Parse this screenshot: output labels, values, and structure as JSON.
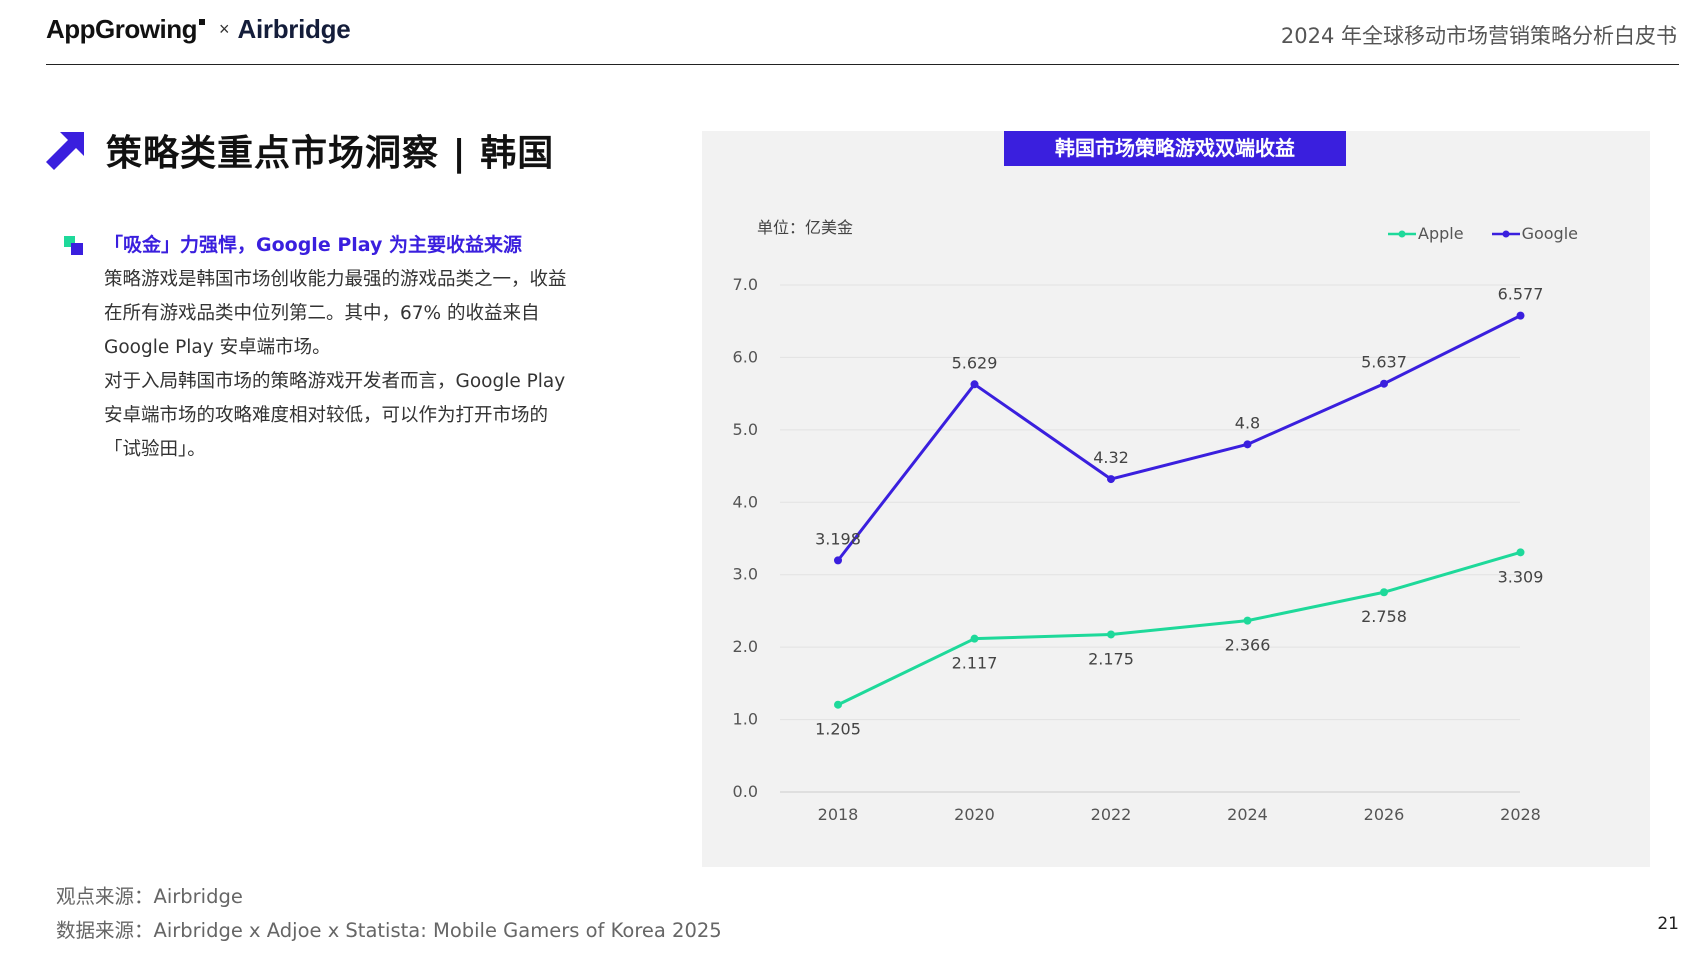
{
  "header": {
    "logo_left": "AppGrowing",
    "logo_sep": "×",
    "logo_right": "Airbridge",
    "report_title": "2024 年全球移动市场营销策略分析白皮书"
  },
  "section": {
    "title": "策略类重点市场洞察 | 韩国",
    "arrow_color": "#3a1fde"
  },
  "insight": {
    "headline": "「吸金」力强悍，Google Play 为主要收益来源",
    "lines": [
      "策略游戏是韩国市场创收能力最强的游戏品类之一，收益",
      "在所有游戏品类中位列第二。其中，67% 的收益来自",
      "Google Play 安卓端市场。",
      "对于入局韩国市场的策略游戏开发者而言，Google Play",
      "安卓端市场的攻略难度相对较低，可以作为打开市场的",
      "「试验田」。"
    ]
  },
  "sources": {
    "opinion": "观点来源：Airbridge",
    "data": "数据来源：Airbridge x Adjoe x Statista: Mobile Gamers of Korea 2025"
  },
  "page_number": "21",
  "chart_data": {
    "type": "line",
    "title": "韩国市场策略游戏双端收益",
    "unit_label": "单位：亿美金",
    "x": [
      "2018",
      "2020",
      "2022",
      "2024",
      "2026",
      "2028"
    ],
    "yticks": [
      "0.0",
      "1.0",
      "2.0",
      "3.0",
      "4.0",
      "5.0",
      "6.0",
      "7.0"
    ],
    "ylim": [
      0,
      7
    ],
    "grid": true,
    "legend_position": "top-right",
    "series": [
      {
        "name": "Apple",
        "color": "#1ed99a",
        "values": [
          1.205,
          2.117,
          2.175,
          2.366,
          2.758,
          3.309
        ],
        "labels": [
          "1.205",
          "2.117",
          "2.175",
          "2.366",
          "2.758",
          "3.309"
        ],
        "label_side": "below"
      },
      {
        "name": "Google",
        "color": "#3a1fde",
        "values": [
          3.198,
          5.629,
          4.32,
          4.8,
          5.637,
          6.577
        ],
        "labels": [
          "3.198",
          "5.629",
          "4.32",
          "4.8",
          "5.637",
          "6.577"
        ],
        "label_side": "above"
      }
    ]
  }
}
